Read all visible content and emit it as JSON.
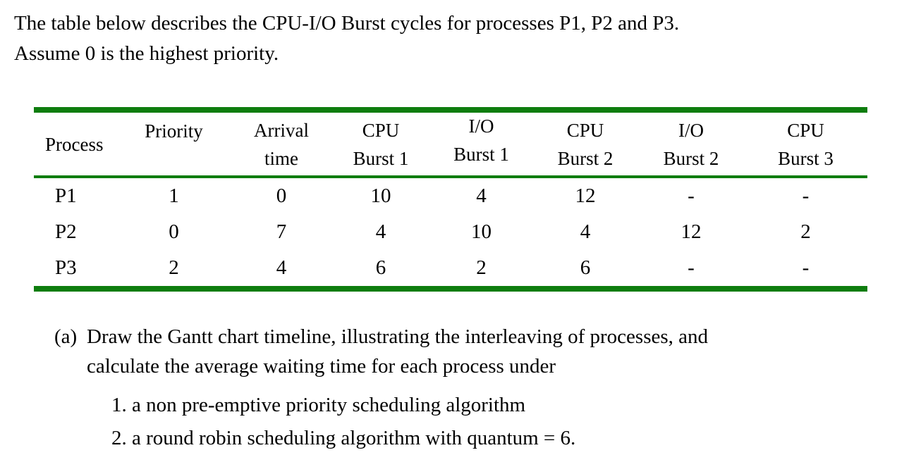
{
  "colors": {
    "rule_green": "#0e7d0e",
    "text": "#000000"
  },
  "intro": {
    "line1": "The table below describes the CPU-I/O Burst cycles for processes P1, P2 and P3.",
    "line2": "Assume 0 is the highest priority."
  },
  "table": {
    "headers": [
      {
        "line1": "Process",
        "line2": ""
      },
      {
        "line1": "Priority",
        "line2": ""
      },
      {
        "line1": "Arrival",
        "line2": "time"
      },
      {
        "line1": "CPU",
        "line2": "Burst 1"
      },
      {
        "line1": "I/O",
        "line2": "Burst 1"
      },
      {
        "line1": "CPU",
        "line2": "Burst 2"
      },
      {
        "line1": "I/O",
        "line2": "Burst 2"
      },
      {
        "line1": "CPU",
        "line2": "Burst 3"
      }
    ],
    "rows": [
      {
        "cells": [
          "P1",
          "1",
          "0",
          "10",
          "4",
          "12",
          "-",
          "-"
        ]
      },
      {
        "cells": [
          "P2",
          "0",
          "7",
          "4",
          "10",
          "4",
          "12",
          "2"
        ]
      },
      {
        "cells": [
          "P3",
          "2",
          "4",
          "6",
          "2",
          "6",
          "-",
          "-"
        ]
      }
    ]
  },
  "question": {
    "label": "(a)",
    "line1": "Draw the Gantt chart timeline, illustrating the interleaving of processes, and",
    "line2": "calculate the average waiting time for each process under",
    "items": [
      "1. a non pre-emptive priority scheduling algorithm",
      "2. a round robin scheduling algorithm with quantum = 6."
    ]
  }
}
